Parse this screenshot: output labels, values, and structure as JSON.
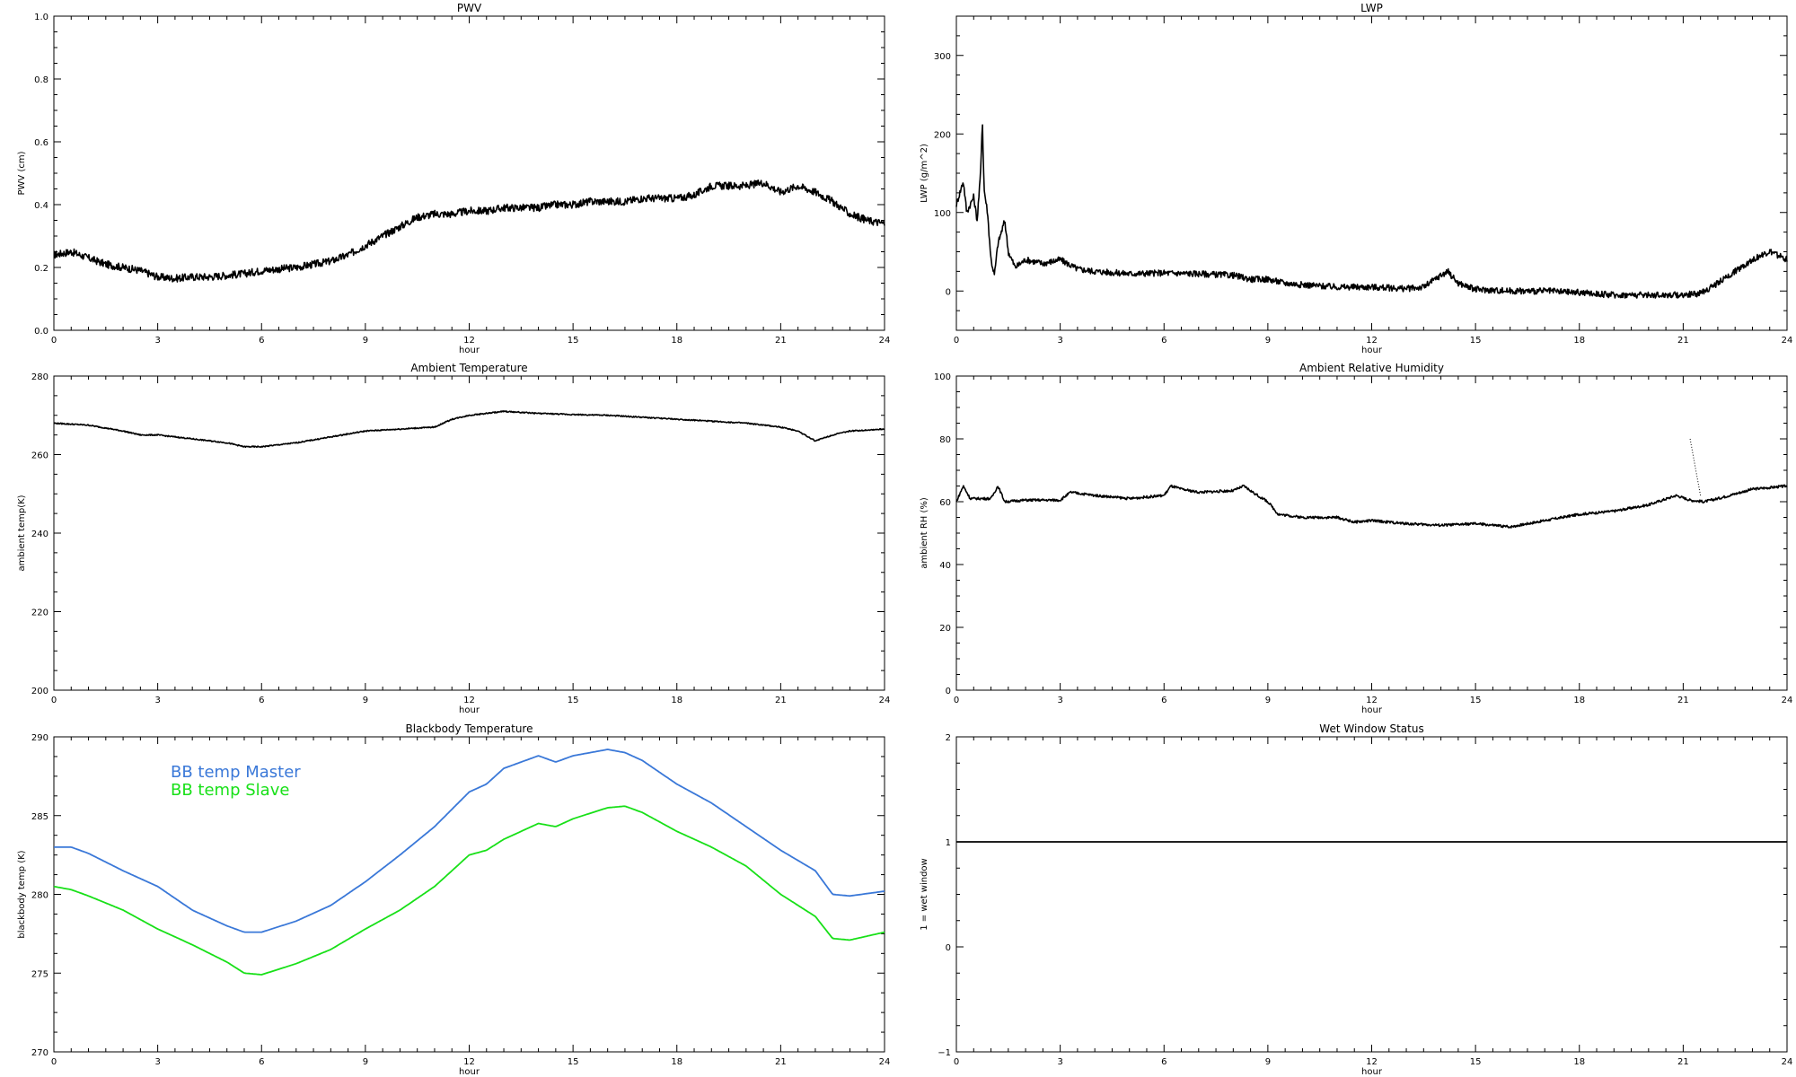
{
  "chart_data": [
    {
      "id": "pwv",
      "type": "line",
      "title": "PWV",
      "xlabel": "hour",
      "ylabel": "PWV (cm)",
      "xlim": [
        0,
        24
      ],
      "ylim": [
        0.0,
        1.0
      ],
      "xticks": [
        0,
        3,
        6,
        9,
        12,
        15,
        18,
        21,
        24
      ],
      "yticks": [
        0.0,
        0.2,
        0.4,
        0.6,
        0.8,
        1.0
      ],
      "ytick_labels": [
        "0.0",
        "0.2",
        "0.4",
        "0.6",
        "0.8",
        "1.0"
      ],
      "noise": 0.012,
      "series": [
        {
          "color": "#000000",
          "points": [
            [
              0,
              0.24
            ],
            [
              0.5,
              0.25
            ],
            [
              1,
              0.23
            ],
            [
              1.5,
              0.21
            ],
            [
              2,
              0.2
            ],
            [
              2.5,
              0.19
            ],
            [
              3,
              0.17
            ],
            [
              3.5,
              0.165
            ],
            [
              4,
              0.17
            ],
            [
              4.5,
              0.17
            ],
            [
              5,
              0.175
            ],
            [
              5.5,
              0.18
            ],
            [
              6,
              0.19
            ],
            [
              6.5,
              0.195
            ],
            [
              7,
              0.2
            ],
            [
              7.5,
              0.21
            ],
            [
              8,
              0.22
            ],
            [
              8.5,
              0.24
            ],
            [
              9,
              0.27
            ],
            [
              9.5,
              0.3
            ],
            [
              10,
              0.33
            ],
            [
              10.5,
              0.36
            ],
            [
              11,
              0.37
            ],
            [
              11.5,
              0.37
            ],
            [
              12,
              0.38
            ],
            [
              12.5,
              0.38
            ],
            [
              13,
              0.39
            ],
            [
              13.5,
              0.39
            ],
            [
              14,
              0.39
            ],
            [
              14.5,
              0.4
            ],
            [
              15,
              0.4
            ],
            [
              15.5,
              0.41
            ],
            [
              16,
              0.41
            ],
            [
              16.5,
              0.41
            ],
            [
              17,
              0.42
            ],
            [
              17.5,
              0.42
            ],
            [
              18,
              0.42
            ],
            [
              18.5,
              0.43
            ],
            [
              19,
              0.46
            ],
            [
              19.5,
              0.46
            ],
            [
              20,
              0.46
            ],
            [
              20.5,
              0.47
            ],
            [
              21,
              0.44
            ],
            [
              21.5,
              0.46
            ],
            [
              22,
              0.44
            ],
            [
              22.5,
              0.41
            ],
            [
              23,
              0.37
            ],
            [
              23.5,
              0.35
            ],
            [
              24,
              0.34
            ]
          ]
        }
      ]
    },
    {
      "id": "lwp",
      "type": "line",
      "title": "LWP",
      "xlabel": "hour",
      "ylabel": "LWP (g/m^2)",
      "xlim": [
        0,
        24
      ],
      "ylim": [
        -50,
        350
      ],
      "xticks": [
        0,
        3,
        6,
        9,
        12,
        15,
        18,
        21,
        24
      ],
      "yticks": [
        0,
        100,
        200,
        300
      ],
      "ytick_labels": [
        "0",
        "100",
        "200",
        "300"
      ],
      "noise": 4,
      "series": [
        {
          "color": "#000000",
          "points": [
            [
              0,
              110
            ],
            [
              0.2,
              140
            ],
            [
              0.3,
              100
            ],
            [
              0.5,
              120
            ],
            [
              0.6,
              90
            ],
            [
              0.7,
              150
            ],
            [
              0.75,
              220
            ],
            [
              0.8,
              130
            ],
            [
              0.9,
              100
            ],
            [
              1,
              40
            ],
            [
              1.1,
              20
            ],
            [
              1.2,
              60
            ],
            [
              1.4,
              90
            ],
            [
              1.5,
              50
            ],
            [
              1.7,
              30
            ],
            [
              2,
              40
            ],
            [
              2.5,
              35
            ],
            [
              3,
              40
            ],
            [
              3.5,
              28
            ],
            [
              4,
              25
            ],
            [
              5,
              22
            ],
            [
              6,
              23
            ],
            [
              7,
              22
            ],
            [
              8,
              20
            ],
            [
              8.5,
              15
            ],
            [
              9,
              15
            ],
            [
              9.5,
              10
            ],
            [
              10,
              8
            ],
            [
              11,
              5
            ],
            [
              12,
              5
            ],
            [
              13,
              3
            ],
            [
              13.5,
              5
            ],
            [
              14,
              20
            ],
            [
              14.2,
              25
            ],
            [
              14.5,
              10
            ],
            [
              15,
              2
            ],
            [
              16,
              0
            ],
            [
              17,
              0
            ],
            [
              18,
              -2
            ],
            [
              19,
              -5
            ],
            [
              20,
              -5
            ],
            [
              21,
              -5
            ],
            [
              21.5,
              -3
            ],
            [
              22,
              10
            ],
            [
              22.5,
              25
            ],
            [
              23,
              40
            ],
            [
              23.5,
              50
            ],
            [
              24,
              40
            ]
          ]
        }
      ]
    },
    {
      "id": "ambient-temperature",
      "type": "line",
      "title": "Ambient Temperature",
      "xlabel": "hour",
      "ylabel": "ambient temp(K)",
      "xlim": [
        0,
        24
      ],
      "ylim": [
        200,
        280
      ],
      "xticks": [
        0,
        3,
        6,
        9,
        12,
        15,
        18,
        21,
        24
      ],
      "yticks": [
        200,
        220,
        240,
        260,
        280
      ],
      "ytick_labels": [
        "200",
        "220",
        "240",
        "260",
        "280"
      ],
      "noise": 0.15,
      "series": [
        {
          "color": "#000000",
          "points": [
            [
              0,
              268
            ],
            [
              1,
              267.5
            ],
            [
              2,
              266
            ],
            [
              2.5,
              265
            ],
            [
              3,
              265
            ],
            [
              4,
              264
            ],
            [
              5,
              263
            ],
            [
              5.5,
              262
            ],
            [
              6,
              262
            ],
            [
              7,
              263
            ],
            [
              8,
              264.5
            ],
            [
              9,
              266
            ],
            [
              10,
              266.5
            ],
            [
              11,
              267
            ],
            [
              11.5,
              269
            ],
            [
              12,
              270
            ],
            [
              13,
              271
            ],
            [
              14,
              270.5
            ],
            [
              15,
              270.2
            ],
            [
              16,
              270
            ],
            [
              17,
              269.5
            ],
            [
              18,
              269
            ],
            [
              19,
              268.5
            ],
            [
              20,
              268
            ],
            [
              21,
              267
            ],
            [
              21.5,
              266
            ],
            [
              22,
              263.5
            ],
            [
              22.5,
              265
            ],
            [
              23,
              266
            ],
            [
              24,
              266.5
            ]
          ]
        }
      ]
    },
    {
      "id": "ambient-relative-humidity",
      "type": "line",
      "title": "Ambient Relative Humidity",
      "xlabel": "hour",
      "ylabel": "ambient RH (%)",
      "xlim": [
        0,
        24
      ],
      "ylim": [
        0,
        100
      ],
      "xticks": [
        0,
        3,
        6,
        9,
        12,
        15,
        18,
        21,
        24
      ],
      "yticks": [
        0,
        20,
        40,
        60,
        80,
        100
      ],
      "ytick_labels": [
        "0",
        "20",
        "40",
        "60",
        "80",
        "100"
      ],
      "noise": 0.4,
      "series": [
        {
          "color": "#000000",
          "points": [
            [
              0,
              60
            ],
            [
              0.2,
              65
            ],
            [
              0.4,
              61
            ],
            [
              1,
              61
            ],
            [
              1.2,
              65
            ],
            [
              1.4,
              60
            ],
            [
              2,
              60.5
            ],
            [
              3,
              60.5
            ],
            [
              3.3,
              63
            ],
            [
              4,
              62
            ],
            [
              5,
              61
            ],
            [
              6,
              62
            ],
            [
              6.2,
              65
            ],
            [
              6.5,
              64
            ],
            [
              7,
              63
            ],
            [
              8,
              63.5
            ],
            [
              8.3,
              65
            ],
            [
              8.7,
              62
            ],
            [
              9,
              60
            ],
            [
              9.3,
              56
            ],
            [
              10,
              55
            ],
            [
              11,
              55
            ],
            [
              11.5,
              53.5
            ],
            [
              12,
              54
            ],
            [
              13,
              53
            ],
            [
              14,
              52.5
            ],
            [
              15,
              53
            ],
            [
              16,
              52
            ],
            [
              17,
              54
            ],
            [
              18,
              56
            ],
            [
              19,
              57
            ],
            [
              20,
              59
            ],
            [
              20.8,
              62
            ],
            [
              21.2,
              60.5
            ],
            [
              21.6,
              60
            ],
            [
              22,
              61
            ],
            [
              22.5,
              62.5
            ],
            [
              23,
              64
            ],
            [
              24,
              65
            ]
          ]
        }
      ],
      "overlay": [
        [
          21.2,
          80
        ],
        [
          21.5,
          62
        ]
      ]
    },
    {
      "id": "blackbody-temperature",
      "type": "line",
      "title": "Blackbody Temperature",
      "xlabel": "hour",
      "ylabel": "blackbody temp (K)",
      "xlim": [
        0,
        24
      ],
      "ylim": [
        270,
        290
      ],
      "xticks": [
        0,
        3,
        6,
        9,
        12,
        15,
        18,
        21,
        24
      ],
      "yticks": [
        270,
        275,
        280,
        285,
        290
      ],
      "ytick_labels": [
        "270",
        "275",
        "280",
        "285",
        "290"
      ],
      "noise": 0,
      "legend": "top-left",
      "series": [
        {
          "name": "BB temp Master",
          "color": "#3a78d8",
          "points": [
            [
              0,
              283
            ],
            [
              0.5,
              283
            ],
            [
              1,
              282.6
            ],
            [
              2,
              281.5
            ],
            [
              3,
              280.5
            ],
            [
              4,
              279
            ],
            [
              5,
              278
            ],
            [
              5.5,
              277.6
            ],
            [
              6,
              277.6
            ],
            [
              7,
              278.3
            ],
            [
              8,
              279.3
            ],
            [
              9,
              280.8
            ],
            [
              10,
              282.5
            ],
            [
              11,
              284.3
            ],
            [
              12,
              286.5
            ],
            [
              12.5,
              287
            ],
            [
              13,
              288
            ],
            [
              14,
              288.8
            ],
            [
              14.5,
              288.4
            ],
            [
              15,
              288.8
            ],
            [
              16,
              289.2
            ],
            [
              16.5,
              289
            ],
            [
              17,
              288.5
            ],
            [
              18,
              287
            ],
            [
              19,
              285.8
            ],
            [
              20,
              284.3
            ],
            [
              21,
              282.8
            ],
            [
              22,
              281.5
            ],
            [
              22.5,
              280
            ],
            [
              23,
              279.9
            ],
            [
              24,
              280.2
            ]
          ]
        },
        {
          "name": "BB temp Slave",
          "color": "#18e018",
          "points": [
            [
              0,
              280.5
            ],
            [
              0.5,
              280.3
            ],
            [
              1,
              279.9
            ],
            [
              2,
              279
            ],
            [
              3,
              277.8
            ],
            [
              4,
              276.8
            ],
            [
              5,
              275.7
            ],
            [
              5.5,
              275
            ],
            [
              6,
              274.9
            ],
            [
              7,
              275.6
            ],
            [
              8,
              276.5
            ],
            [
              9,
              277.8
            ],
            [
              10,
              279
            ],
            [
              11,
              280.5
            ],
            [
              12,
              282.5
            ],
            [
              12.5,
              282.8
            ],
            [
              13,
              283.5
            ],
            [
              14,
              284.5
            ],
            [
              14.5,
              284.3
            ],
            [
              15,
              284.8
            ],
            [
              16,
              285.5
            ],
            [
              16.5,
              285.6
            ],
            [
              17,
              285.2
            ],
            [
              18,
              284
            ],
            [
              19,
              283
            ],
            [
              20,
              281.8
            ],
            [
              21,
              280
            ],
            [
              22,
              278.6
            ],
            [
              22.5,
              277.2
            ],
            [
              23,
              277.1
            ],
            [
              24,
              277.6
            ]
          ]
        }
      ]
    },
    {
      "id": "wet-window-status",
      "type": "line",
      "title": "Wet Window Status",
      "xlabel": "hour",
      "ylabel": "1 = wet window",
      "xlim": [
        0,
        24
      ],
      "ylim": [
        -1,
        2
      ],
      "xticks": [
        0,
        3,
        6,
        9,
        12,
        15,
        18,
        21,
        24
      ],
      "yticks": [
        -1,
        0,
        1,
        2
      ],
      "ytick_labels": [
        "−1",
        "0",
        "1",
        "2"
      ],
      "noise": 0,
      "series": [
        {
          "color": "#000000",
          "points": [
            [
              0,
              1
            ],
            [
              24,
              1
            ]
          ]
        }
      ]
    }
  ]
}
